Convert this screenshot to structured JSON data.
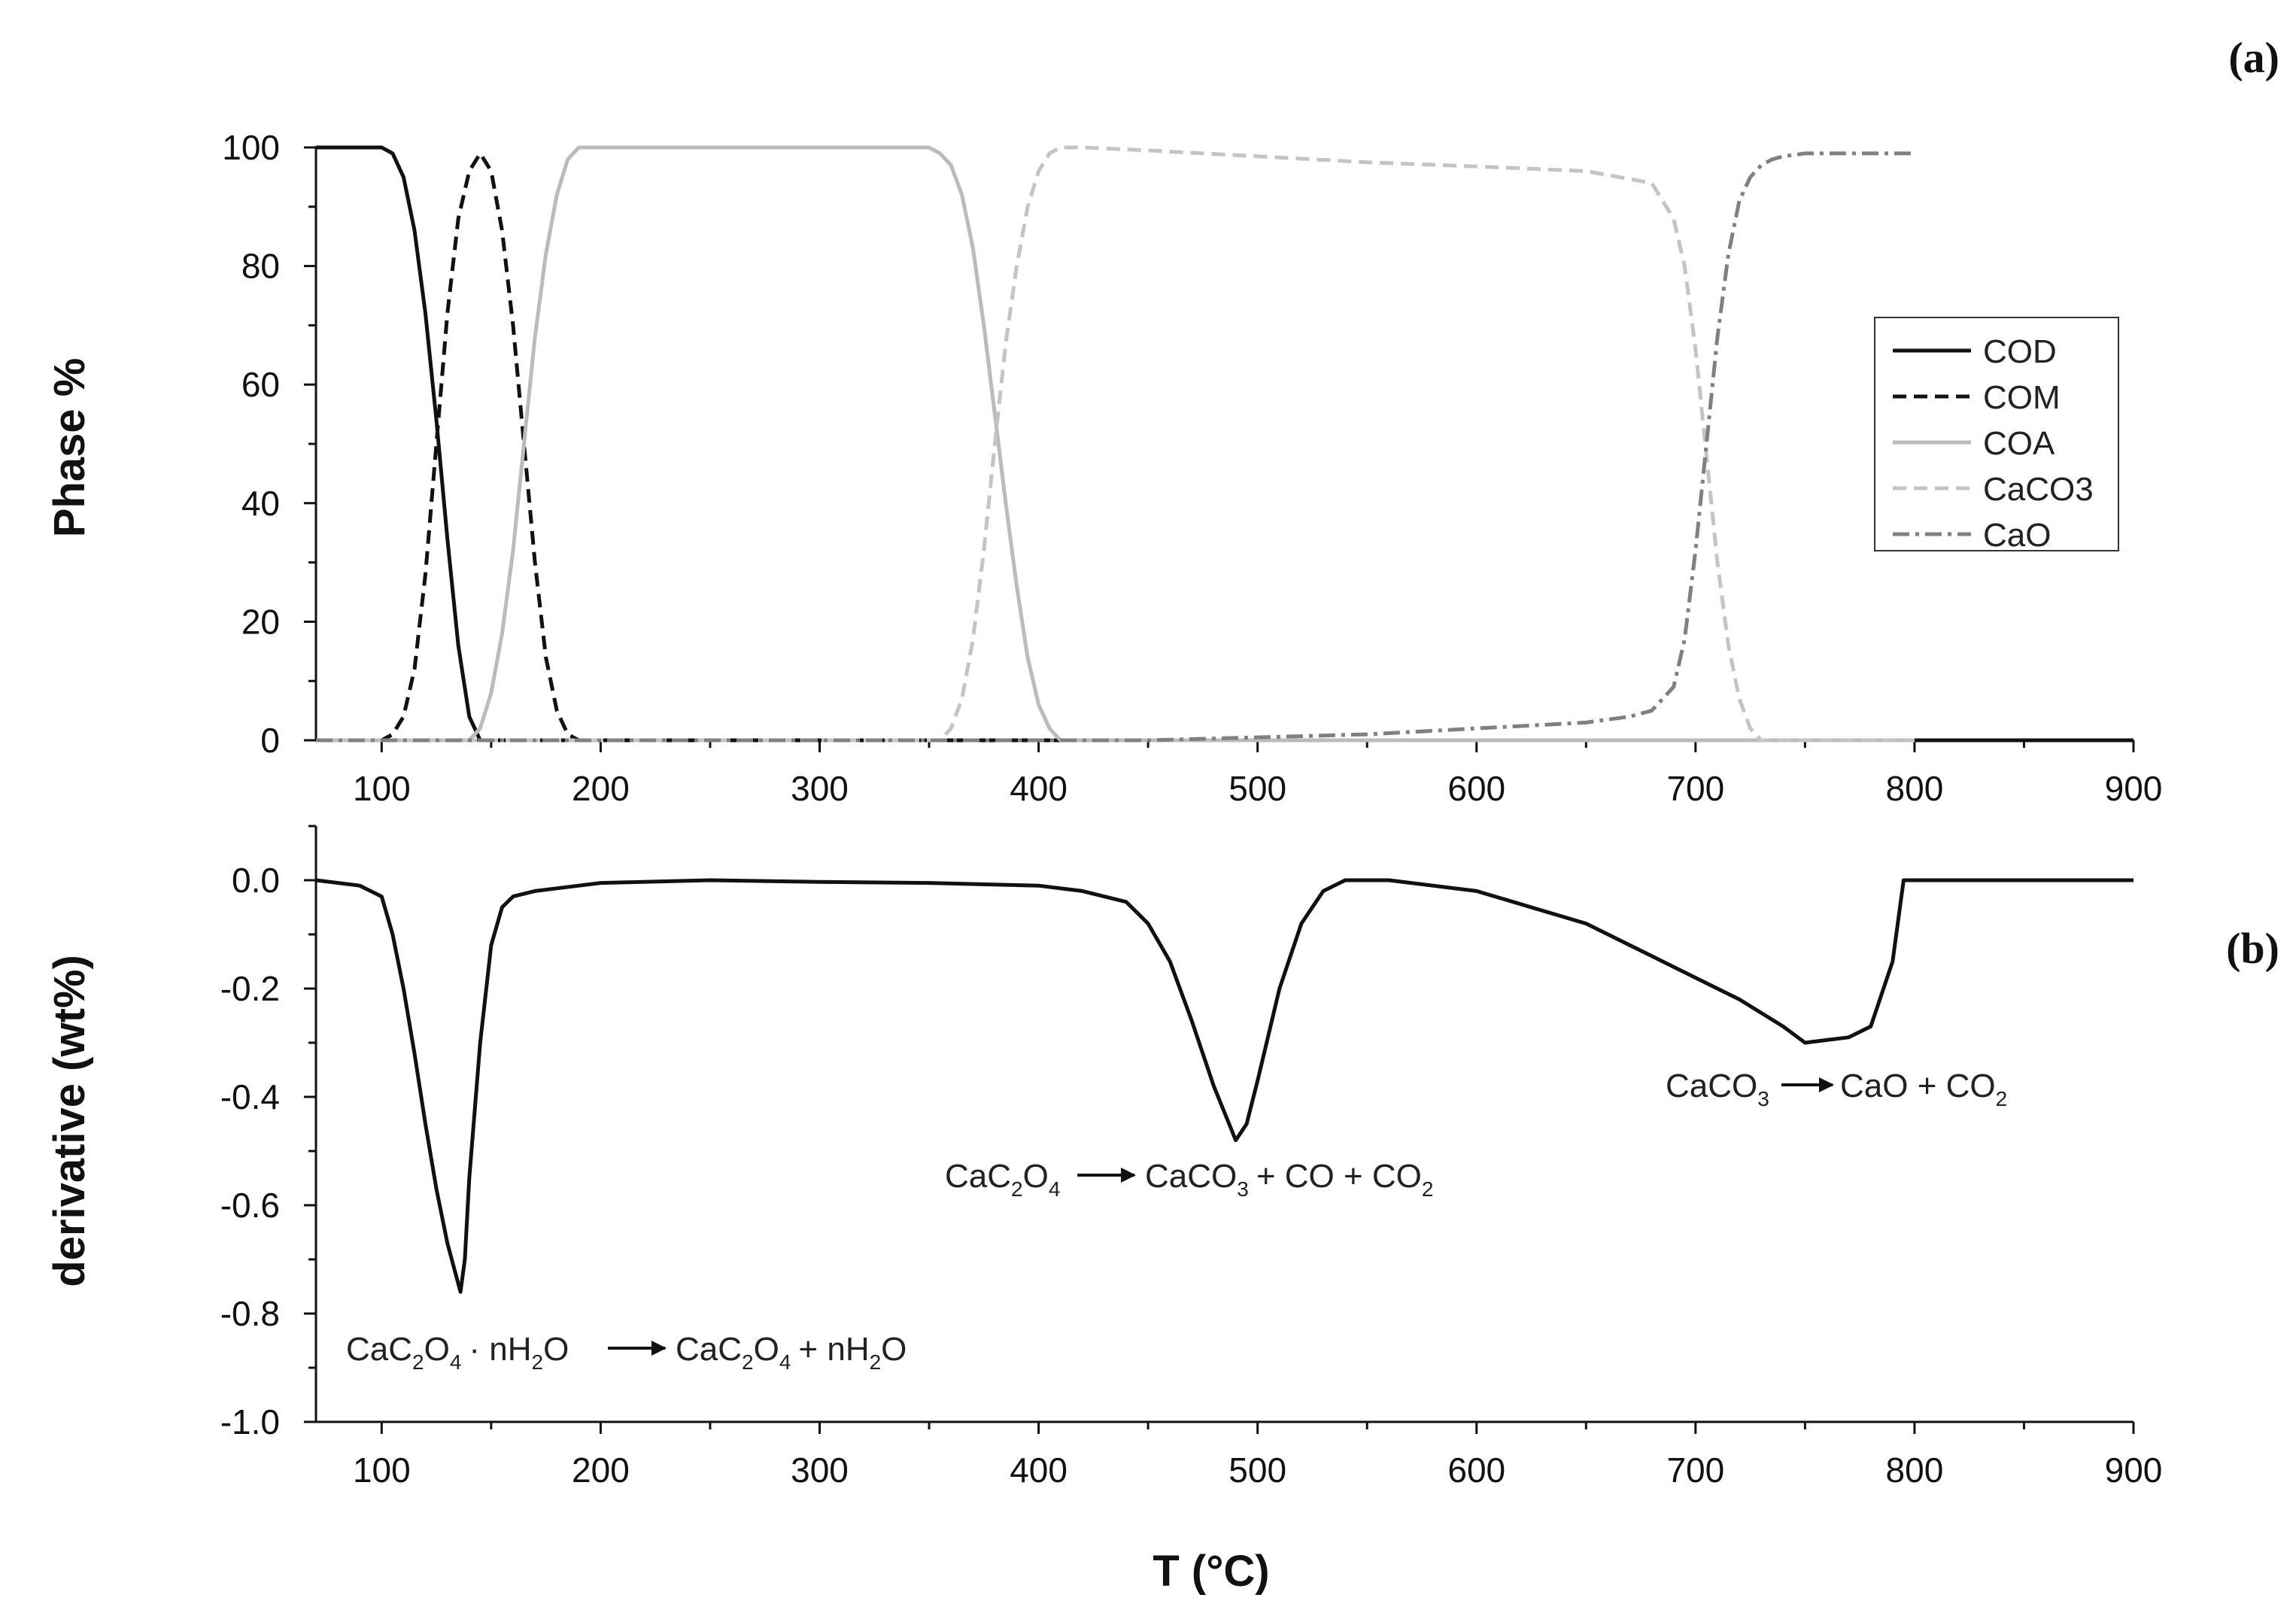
{
  "panel_labels": {
    "a": "(a)",
    "b": "(b)"
  },
  "legend": {
    "items": [
      {
        "label": "COD",
        "color": "#111111",
        "dash": "solid"
      },
      {
        "label": "COM",
        "color": "#111111",
        "dash": "dashed"
      },
      {
        "label": "COA",
        "color": "#bbbbbb",
        "dash": "solid"
      },
      {
        "label": "CaCO3",
        "color": "#c4c4c4",
        "dash": "dashed"
      },
      {
        "label": "CaO",
        "color": "#808080",
        "dash": "dashdot"
      }
    ]
  },
  "annotations": {
    "reaction1": {
      "p1": "CaC",
      "s1": "2",
      "p2": "O",
      "s2": "4",
      "p3": "· nH",
      "s3": "2",
      "p4": "O",
      "p5": "CaC",
      "s5": "2",
      "p6": "O",
      "s6": "4",
      "p7": "+ nH",
      "s7": "2",
      "p8": "O"
    },
    "reaction2": {
      "p1": "CaC",
      "s1": "2",
      "p2": "O",
      "s2": "4",
      "p3": "CaCO",
      "s3": "3",
      "p4": "+ CO + CO",
      "s4": "2"
    },
    "reaction3": {
      "p1": "CaCO",
      "s1": "3",
      "p2": "CaO + CO",
      "s2": "2"
    }
  },
  "chart_data": [
    {
      "type": "line",
      "panel": "a",
      "xlabel": "",
      "ylabel": "Phase %",
      "xlim": [
        70,
        900
      ],
      "ylim": [
        0,
        100
      ],
      "xticks": [
        100,
        200,
        300,
        400,
        500,
        600,
        700,
        800,
        900
      ],
      "yticks": [
        0,
        20,
        40,
        60,
        80,
        100
      ],
      "legend_position": "right",
      "series": [
        {
          "name": "COD",
          "x": [
            70,
            100,
            105,
            110,
            115,
            120,
            125,
            130,
            135,
            140,
            145,
            150,
            160,
            200,
            300,
            400,
            500,
            600,
            700,
            800,
            900
          ],
          "y": [
            100,
            100,
            99,
            95,
            86,
            72,
            54,
            34,
            16,
            4,
            0,
            0,
            0,
            0,
            0,
            0,
            0,
            0,
            0,
            0,
            0
          ]
        },
        {
          "name": "COM",
          "x": [
            70,
            100,
            105,
            110,
            115,
            120,
            125,
            130,
            135,
            140,
            145,
            150,
            155,
            160,
            165,
            170,
            175,
            180,
            185,
            190,
            250,
            400,
            600,
            800
          ],
          "y": [
            0,
            0,
            1,
            4,
            12,
            28,
            50,
            72,
            88,
            96,
            99,
            96,
            86,
            70,
            50,
            30,
            14,
            5,
            1,
            0,
            0,
            0,
            0,
            0
          ]
        },
        {
          "name": "COA",
          "x": [
            70,
            140,
            145,
            150,
            155,
            160,
            165,
            170,
            175,
            180,
            185,
            190,
            200,
            300,
            350,
            355,
            360,
            365,
            370,
            375,
            380,
            385,
            390,
            395,
            400,
            405,
            410,
            415,
            500,
            800
          ],
          "y": [
            0,
            0,
            2,
            8,
            18,
            32,
            50,
            68,
            82,
            92,
            98,
            100,
            100,
            100,
            100,
            99,
            97,
            92,
            83,
            70,
            55,
            40,
            26,
            14,
            6,
            2,
            0,
            0,
            0,
            0
          ]
        },
        {
          "name": "CaCO3",
          "x": [
            70,
            355,
            360,
            365,
            370,
            375,
            380,
            385,
            390,
            395,
            400,
            405,
            410,
            420,
            450,
            500,
            550,
            600,
            650,
            680,
            690,
            695,
            700,
            705,
            710,
            715,
            720,
            725,
            730,
            740,
            800
          ],
          "y": [
            0,
            0,
            2,
            7,
            17,
            32,
            50,
            67,
            80,
            90,
            96,
            99,
            100,
            100,
            99.5,
            98.5,
            97.5,
            96.8,
            96,
            94,
            88,
            80,
            66,
            48,
            30,
            16,
            7,
            2,
            0,
            0,
            0
          ]
        },
        {
          "name": "CaO",
          "x": [
            70,
            450,
            500,
            550,
            600,
            650,
            670,
            680,
            690,
            695,
            700,
            705,
            710,
            715,
            720,
            725,
            730,
            735,
            740,
            750,
            800
          ],
          "y": [
            0,
            0,
            0.5,
            1,
            2,
            3,
            4,
            5,
            9,
            17,
            32,
            50,
            68,
            82,
            91,
            95,
            97,
            98,
            98.5,
            99,
            99
          ]
        }
      ]
    },
    {
      "type": "line",
      "panel": "b",
      "xlabel": "T (°C)",
      "ylabel": "derivative (wt%)",
      "xlim": [
        70,
        900
      ],
      "ylim": [
        -1.0,
        0.1
      ],
      "xticks": [
        100,
        200,
        300,
        400,
        500,
        600,
        700,
        800,
        900
      ],
      "yticks": [
        0.0,
        -0.2,
        -0.4,
        -0.6,
        -0.8,
        -1.0
      ],
      "series": [
        {
          "name": "",
          "x": [
            70,
            90,
            100,
            105,
            110,
            115,
            120,
            125,
            130,
            134,
            136,
            138,
            140,
            145,
            150,
            155,
            160,
            170,
            180,
            200,
            250,
            300,
            350,
            400,
            420,
            440,
            450,
            460,
            470,
            480,
            490,
            495,
            500,
            510,
            520,
            530,
            540,
            560,
            600,
            650,
            680,
            690,
            700,
            720,
            740,
            750,
            760,
            770,
            780,
            790,
            795,
            800,
            850,
            900
          ],
          "y": [
            0,
            -0.01,
            -0.03,
            -0.1,
            -0.2,
            -0.32,
            -0.45,
            -0.57,
            -0.67,
            -0.73,
            -0.76,
            -0.7,
            -0.55,
            -0.3,
            -0.12,
            -0.05,
            -0.03,
            -0.02,
            -0.015,
            -0.005,
            0,
            -0.003,
            -0.005,
            -0.01,
            -0.02,
            -0.04,
            -0.08,
            -0.15,
            -0.26,
            -0.38,
            -0.48,
            -0.45,
            -0.37,
            -0.2,
            -0.08,
            -0.02,
            0,
            0,
            -0.02,
            -0.08,
            -0.14,
            -0.16,
            -0.18,
            -0.22,
            -0.27,
            -0.3,
            -0.295,
            -0.29,
            -0.27,
            -0.15,
            0,
            0,
            0,
            0
          ]
        }
      ]
    }
  ]
}
